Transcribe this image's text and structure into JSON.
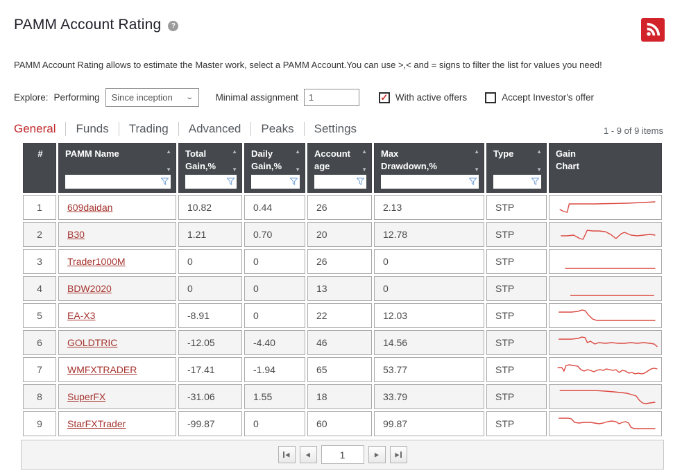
{
  "colors": {
    "accent_red": "#c02729",
    "rss_red": "#d2232a",
    "link_red": "#a5332e",
    "sparkline": "#dc4840",
    "header_bg": "#45494e",
    "funnel_blue": "#7da7d9"
  },
  "header": {
    "title": "PAMM Account Rating",
    "help_glyph": "?"
  },
  "description": "PAMM Account Rating allows to estimate the Master work, select a PAMM Account.You can use >,< and = signs to filter the list for values you need!",
  "controls": {
    "explore_label": "Explore:",
    "explore_value": "Performing",
    "period_selected": "Since inception",
    "minimal_assignment_label": "Minimal assignment",
    "minimal_assignment_value": "1",
    "with_active_offers": {
      "label": "With active offers",
      "checked": true,
      "check_glyph": "✓"
    },
    "accept_investor_offer": {
      "label": "Accept Investor's offer",
      "checked": false,
      "check_glyph": "✓"
    }
  },
  "tabs": [
    {
      "label": "General",
      "active": true
    },
    {
      "label": "Funds",
      "active": false
    },
    {
      "label": "Trading",
      "active": false
    },
    {
      "label": "Advanced",
      "active": false
    },
    {
      "label": "Peaks",
      "active": false
    },
    {
      "label": "Settings",
      "active": false
    }
  ],
  "items_count": "1 - 9 of 9 items",
  "table": {
    "columns": {
      "rank": "#",
      "name": "PAMM Name",
      "total_gain": "Total\nGain,%",
      "daily_gain": "Daily\nGain,%",
      "account_age": "Account\nage",
      "max_drawdown": "Max\nDrawdown,%",
      "type": "Type",
      "gain_chart": "Gain\nChart"
    },
    "filter_placeholder": "",
    "rows": [
      {
        "rank": "1",
        "name": "609daidan",
        "total_gain": "10.82",
        "daily_gain": "0.44",
        "account_age": "26",
        "max_drawdown": "2.13",
        "type": "STP",
        "spark": [
          [
            7,
            18
          ],
          [
            11,
            21
          ],
          [
            14,
            22
          ],
          [
            16,
            10
          ],
          [
            25,
            10
          ],
          [
            40,
            10
          ],
          [
            55,
            9.5
          ],
          [
            70,
            9
          ],
          [
            85,
            8
          ],
          [
            97,
            7
          ]
        ]
      },
      {
        "rank": "2",
        "name": "B30",
        "total_gain": "1.21",
        "daily_gain": "0.70",
        "account_age": "20",
        "max_drawdown": "12.78",
        "type": "STP",
        "spark": [
          [
            8,
            17
          ],
          [
            14,
            17
          ],
          [
            20,
            16
          ],
          [
            26,
            21
          ],
          [
            29,
            22
          ],
          [
            33,
            9
          ],
          [
            38,
            10
          ],
          [
            44,
            10
          ],
          [
            50,
            11
          ],
          [
            55,
            15
          ],
          [
            60,
            21
          ],
          [
            65,
            14
          ],
          [
            68,
            12
          ],
          [
            74,
            16
          ],
          [
            80,
            17
          ],
          [
            86,
            16
          ],
          [
            92,
            15
          ],
          [
            97,
            16
          ]
        ]
      },
      {
        "rank": "3",
        "name": "Trader1000M",
        "total_gain": "0",
        "daily_gain": "0",
        "account_age": "26",
        "max_drawdown": "0",
        "type": "STP",
        "spark": [
          [
            12,
            25
          ],
          [
            97,
            25
          ]
        ]
      },
      {
        "rank": "4",
        "name": "BDW2020",
        "total_gain": "0",
        "daily_gain": "0",
        "account_age": "13",
        "max_drawdown": "0",
        "type": "STP",
        "spark": [
          [
            17,
            25
          ],
          [
            96,
            25
          ]
        ]
      },
      {
        "rank": "5",
        "name": "EA-X3",
        "total_gain": "-8.91",
        "daily_gain": "0",
        "account_age": "22",
        "max_drawdown": "12.03",
        "type": "STP",
        "spark": [
          [
            6,
            10
          ],
          [
            18,
            10
          ],
          [
            24,
            9
          ],
          [
            28,
            7
          ],
          [
            31,
            8
          ],
          [
            34,
            14
          ],
          [
            38,
            20
          ],
          [
            42,
            22
          ],
          [
            55,
            22
          ],
          [
            97,
            22
          ]
        ]
      },
      {
        "rank": "6",
        "name": "GOLDTRIC",
        "total_gain": "-12.05",
        "daily_gain": "-4.40",
        "account_age": "46",
        "max_drawdown": "14.56",
        "type": "STP",
        "spark": [
          [
            6,
            10
          ],
          [
            18,
            10
          ],
          [
            24,
            9
          ],
          [
            28,
            7
          ],
          [
            31,
            8
          ],
          [
            33,
            15
          ],
          [
            36,
            13
          ],
          [
            40,
            17
          ],
          [
            44,
            15
          ],
          [
            50,
            16
          ],
          [
            56,
            15
          ],
          [
            62,
            16
          ],
          [
            68,
            16
          ],
          [
            74,
            15
          ],
          [
            80,
            16
          ],
          [
            86,
            15
          ],
          [
            92,
            16
          ],
          [
            96,
            17
          ],
          [
            99,
            21
          ]
        ]
      },
      {
        "rank": "7",
        "name": "WMFXTRADER",
        "total_gain": "-17.41",
        "daily_gain": "-1.94",
        "account_age": "65",
        "max_drawdown": "53.77",
        "type": "STP",
        "spark": [
          [
            5,
            12
          ],
          [
            9,
            12
          ],
          [
            11,
            17
          ],
          [
            13,
            9
          ],
          [
            16,
            8
          ],
          [
            20,
            9
          ],
          [
            24,
            10
          ],
          [
            27,
            15
          ],
          [
            30,
            17
          ],
          [
            33,
            15
          ],
          [
            36,
            16
          ],
          [
            39,
            18
          ],
          [
            42,
            16
          ],
          [
            45,
            15
          ],
          [
            48,
            16
          ],
          [
            51,
            14
          ],
          [
            54,
            15
          ],
          [
            57,
            16
          ],
          [
            60,
            15
          ],
          [
            63,
            19
          ],
          [
            66,
            16
          ],
          [
            69,
            17
          ],
          [
            72,
            20
          ],
          [
            75,
            19
          ],
          [
            78,
            21
          ],
          [
            81,
            20
          ],
          [
            84,
            21
          ],
          [
            87,
            20
          ],
          [
            90,
            17
          ],
          [
            93,
            14
          ],
          [
            96,
            13
          ],
          [
            99,
            14
          ]
        ]
      },
      {
        "rank": "8",
        "name": "SuperFX",
        "total_gain": "-31.06",
        "daily_gain": "1.55",
        "account_age": "18",
        "max_drawdown": "33.79",
        "type": "STP",
        "spark": [
          [
            7,
            6
          ],
          [
            40,
            6
          ],
          [
            50,
            7
          ],
          [
            58,
            8
          ],
          [
            65,
            9
          ],
          [
            70,
            10
          ],
          [
            75,
            12
          ],
          [
            79,
            14
          ],
          [
            82,
            20
          ],
          [
            85,
            24
          ],
          [
            88,
            25
          ],
          [
            92,
            24
          ],
          [
            97,
            23
          ]
        ]
      },
      {
        "rank": "9",
        "name": "StarFXTrader",
        "total_gain": "-99.87",
        "daily_gain": "0",
        "account_age": "60",
        "max_drawdown": "99.87",
        "type": "STP",
        "spark": [
          [
            6,
            7
          ],
          [
            15,
            7
          ],
          [
            18,
            8
          ],
          [
            21,
            13
          ],
          [
            25,
            14
          ],
          [
            30,
            13
          ],
          [
            36,
            13
          ],
          [
            40,
            14
          ],
          [
            44,
            15
          ],
          [
            48,
            14
          ],
          [
            52,
            12
          ],
          [
            56,
            11
          ],
          [
            60,
            12
          ],
          [
            63,
            15
          ],
          [
            66,
            13
          ],
          [
            69,
            12
          ],
          [
            72,
            14
          ],
          [
            74,
            20
          ],
          [
            77,
            22
          ],
          [
            85,
            22
          ],
          [
            97,
            22
          ]
        ]
      }
    ]
  },
  "pagination": {
    "page_value": "1"
  }
}
